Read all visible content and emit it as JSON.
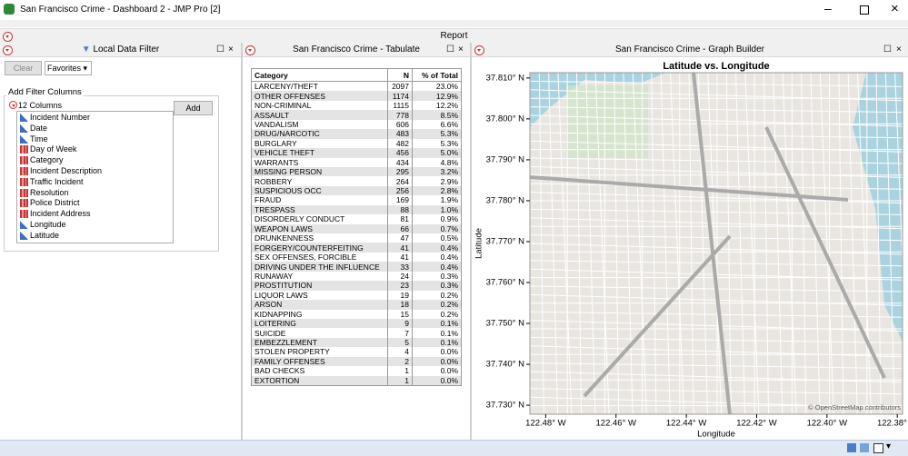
{
  "window": {
    "title": "San Francisco Crime - Dashboard 2 - JMP Pro [2]"
  },
  "report": {
    "title": "Report"
  },
  "filter": {
    "title": "Local Data Filter",
    "clear": "Clear",
    "favorites": "Favorites",
    "group_title": "Add Filter Columns",
    "count_label": "12 Columns",
    "add": "Add",
    "columns": [
      "Incident Number",
      "Date",
      "Time",
      "Day of Week",
      "Category",
      "Incident Description",
      "Traffic Incident",
      "Resolution",
      "Police District",
      "Incident Address",
      "Longitude",
      "Latitude"
    ]
  },
  "tabulate": {
    "title": "San Francisco Crime - Tabulate",
    "headers": [
      "Category",
      "N",
      "% of Total"
    ],
    "rows": [
      [
        "LARCENY/THEFT",
        "2097",
        "23.0%"
      ],
      [
        "OTHER OFFENSES",
        "1174",
        "12.9%"
      ],
      [
        "NON-CRIMINAL",
        "1115",
        "12.2%"
      ],
      [
        "ASSAULT",
        "778",
        "8.5%"
      ],
      [
        "VANDALISM",
        "606",
        "6.6%"
      ],
      [
        "DRUG/NARCOTIC",
        "483",
        "5.3%"
      ],
      [
        "BURGLARY",
        "482",
        "5.3%"
      ],
      [
        "VEHICLE THEFT",
        "456",
        "5.0%"
      ],
      [
        "WARRANTS",
        "434",
        "4.8%"
      ],
      [
        "MISSING PERSON",
        "295",
        "3.2%"
      ],
      [
        "ROBBERY",
        "264",
        "2.9%"
      ],
      [
        "SUSPICIOUS OCC",
        "256",
        "2.8%"
      ],
      [
        "FRAUD",
        "169",
        "1.9%"
      ],
      [
        "TRESPASS",
        "88",
        "1.0%"
      ],
      [
        "DISORDERLY CONDUCT",
        "81",
        "0.9%"
      ],
      [
        "WEAPON LAWS",
        "66",
        "0.7%"
      ],
      [
        "DRUNKENNESS",
        "47",
        "0.5%"
      ],
      [
        "FORGERY/COUNTERFEITING",
        "41",
        "0.4%"
      ],
      [
        "SEX OFFENSES, FORCIBLE",
        "41",
        "0.4%"
      ],
      [
        "DRIVING UNDER THE INFLUENCE",
        "33",
        "0.4%"
      ],
      [
        "RUNAWAY",
        "24",
        "0.3%"
      ],
      [
        "PROSTITUTION",
        "23",
        "0.3%"
      ],
      [
        "LIQUOR LAWS",
        "19",
        "0.2%"
      ],
      [
        "ARSON",
        "18",
        "0.2%"
      ],
      [
        "KIDNAPPING",
        "15",
        "0.2%"
      ],
      [
        "LOITERING",
        "9",
        "0.1%"
      ],
      [
        "SUICIDE",
        "7",
        "0.1%"
      ],
      [
        "EMBEZZLEMENT",
        "5",
        "0.1%"
      ],
      [
        "STOLEN PROPERTY",
        "4",
        "0.0%"
      ],
      [
        "FAMILY OFFENSES",
        "2",
        "0.0%"
      ],
      [
        "BAD CHECKS",
        "1",
        "0.0%"
      ],
      [
        "EXTORTION",
        "1",
        "0.0%"
      ]
    ]
  },
  "graph": {
    "panel_title": "San Francisco Crime - Graph Builder",
    "title": "Latitude vs. Longitude",
    "x_label": "Longitude",
    "y_label": "Latitude",
    "xlim": [
      -122.4845,
      -122.3785
    ],
    "ylim": [
      37.7278,
      37.8113
    ],
    "xticks": [
      {
        "value": -122.48,
        "label": "122.48° W"
      },
      {
        "value": -122.46,
        "label": "122.46° W"
      },
      {
        "value": -122.44,
        "label": "122.44° W"
      },
      {
        "value": -122.42,
        "label": "122.42° W"
      },
      {
        "value": -122.4,
        "label": "122.40° W"
      },
      {
        "value": -122.38,
        "label": "122.38° W"
      }
    ],
    "yticks": [
      {
        "value": 37.81,
        "label": "37.810° N"
      },
      {
        "value": 37.8,
        "label": "37.800° N"
      },
      {
        "value": 37.79,
        "label": "37.790° N"
      },
      {
        "value": 37.78,
        "label": "37.780° N"
      },
      {
        "value": 37.77,
        "label": "37.770° N"
      },
      {
        "value": 37.76,
        "label": "37.760° N"
      },
      {
        "value": 37.75,
        "label": "37.750° N"
      },
      {
        "value": 37.74,
        "label": "37.740° N"
      },
      {
        "value": 37.73,
        "label": "37.730° N"
      }
    ],
    "attribution": "© OpenStreetMap contributors"
  }
}
